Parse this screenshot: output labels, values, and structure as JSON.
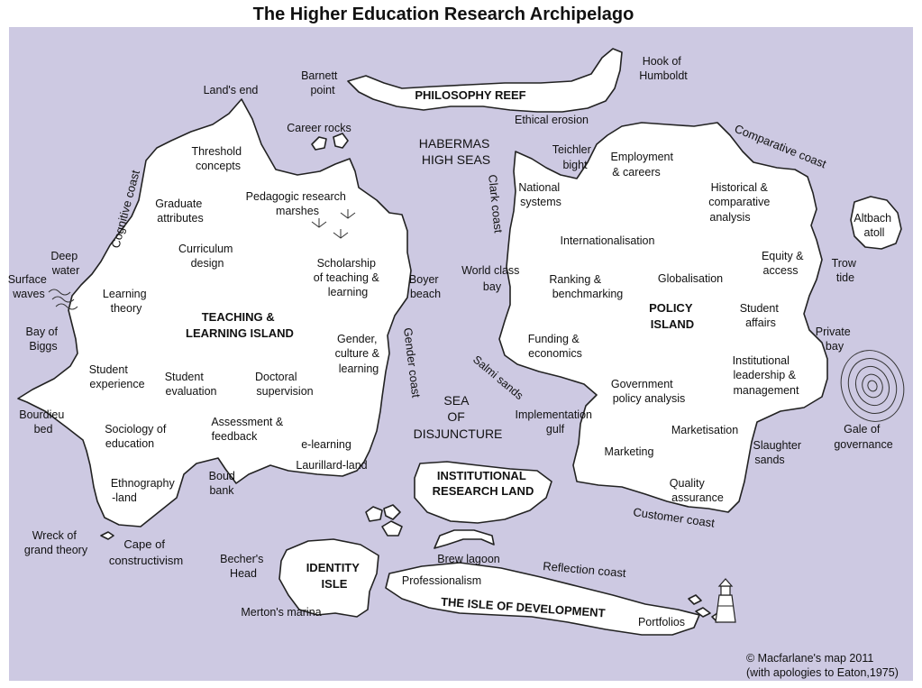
{
  "title": "The Higher Education Research Archipelago",
  "credit": [
    "© Macfarlane's map 2011",
    "(with apologies to Eaton,1975)"
  ],
  "colors": {
    "sea": "#cdc9e2",
    "land": "#ffffff",
    "outline": "#222222"
  },
  "islands": {
    "teaching": [
      "TEACHING &",
      "LEARNING ISLAND"
    ],
    "policy": [
      "POLICY",
      "ISLAND"
    ],
    "philosophy": "PHILOSOPHY REEF",
    "institutional": [
      "INSTITUTIONAL",
      "RESEARCH LAND"
    ],
    "identity": [
      "IDENTITY",
      "ISLE"
    ],
    "development": "THE ISLE OF DEVELOPMENT"
  },
  "seas": {
    "habermas": [
      "HABERMAS",
      "HIGH SEAS"
    ],
    "disjuncture": [
      "SEA",
      "OF",
      "DISJUNCTURE"
    ]
  },
  "coasts": {
    "cognitive": "Cognitive coast",
    "gender": "Gender coast",
    "clark": "Clark coast",
    "comparative": "Comparative coast",
    "customer": "Customer coast",
    "reflection": "Reflection coast",
    "salmi": "Salmi sands"
  },
  "teaching_labels": {
    "threshold": [
      "Threshold",
      "concepts"
    ],
    "graduate": [
      "Graduate",
      "attributes"
    ],
    "pedagogic": [
      "Pedagogic research",
      "marshes"
    ],
    "curriculum": [
      "Curriculum",
      "design"
    ],
    "scholarship": [
      "Scholarship",
      "of teaching &",
      "learning"
    ],
    "learning_theory": [
      "Learning",
      "theory"
    ],
    "gender_culture": [
      "Gender,",
      "culture &",
      "learning"
    ],
    "student_experience": [
      "Student",
      "experience"
    ],
    "student_evaluation": [
      "Student",
      "evaluation"
    ],
    "doctoral": [
      "Doctoral",
      "supervision"
    ],
    "sociology": [
      "Sociology of",
      "education"
    ],
    "assessment": [
      "Assessment &",
      "feedback"
    ],
    "elearning": "e-learning",
    "laurillard": "Laurillard-land",
    "ethnography": [
      "Ethnography",
      "-land"
    ]
  },
  "policy_labels": {
    "national": [
      "National",
      "systems"
    ],
    "employment": [
      "Employment",
      "& careers"
    ],
    "historical": [
      "Historical &",
      "comparative",
      "analysis"
    ],
    "internationalisation": "Internationalisation",
    "equity": [
      "Equity &",
      "access"
    ],
    "ranking": [
      "Ranking &",
      "benchmarking"
    ],
    "globalisation": "Globalisation",
    "student_affairs": [
      "Student",
      "affairs"
    ],
    "funding": [
      "Funding &",
      "economics"
    ],
    "institutional_leadership": [
      "Institutional",
      "leadership &",
      "management"
    ],
    "government": [
      "Government",
      "policy analysis"
    ],
    "marketisation": "Marketisation",
    "marketing": "Marketing",
    "quality": [
      "Quality",
      "assurance"
    ]
  },
  "places": {
    "lands_end": "Land's end",
    "barnett": [
      "Barnett",
      "point"
    ],
    "career_rocks": "Career rocks",
    "hook": [
      "Hook of",
      "Humboldt"
    ],
    "ethical": "Ethical erosion",
    "teichler": [
      "Teichler",
      "bight"
    ],
    "altbach": [
      "Altbach",
      "atoll"
    ],
    "trow": [
      "Trow",
      "tide"
    ],
    "private_bay": [
      "Private",
      "bay"
    ],
    "gale": [
      "Gale of",
      "governance"
    ],
    "slaughter": [
      "Slaughter",
      "sands"
    ],
    "deep_water": [
      "Deep",
      "water"
    ],
    "surface_waves": [
      "Surface",
      "waves"
    ],
    "bay_biggs": [
      "Bay of",
      "Biggs"
    ],
    "bourdieu": [
      "Bourdieu",
      "bed"
    ],
    "wreck": [
      "Wreck of",
      "grand theory"
    ],
    "cape": [
      "Cape of",
      "constructivism"
    ],
    "boud": [
      "Boud",
      "bank"
    ],
    "boyer": [
      "Boyer",
      "beach"
    ],
    "world_class": [
      "World class",
      "bay"
    ],
    "implementation": [
      "Implementation",
      "gulf"
    ],
    "becher": [
      "Becher's",
      "Head"
    ],
    "merton": "Merton's marina",
    "brew": "Brew lagoon",
    "professionalism": "Professionalism",
    "portfolios": "Portfolios"
  }
}
